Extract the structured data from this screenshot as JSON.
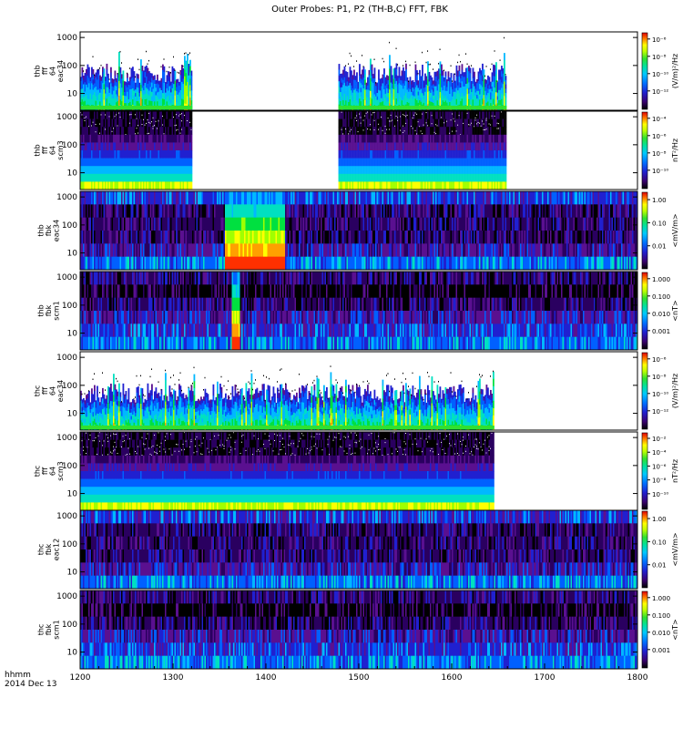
{
  "chart_data": {
    "type": "heatmap",
    "title": "Outer Probes: P1, P2 (TH-B,C) FFT, FBK",
    "corner_label": [
      "hhmm",
      "2014 Dec 13"
    ],
    "xlim": [
      1200,
      1800
    ],
    "x_ticks": [
      "1200",
      "1300",
      "1400",
      "1500",
      "1600",
      "1700",
      "1800"
    ],
    "panels": [
      {
        "id": "thb_fff_eac34",
        "ylabel": [
          "thb",
          "fff",
          "64",
          "eac34"
        ],
        "y_ticks": [
          "10",
          "100",
          "1000"
        ],
        "colorbar_label": "(V/m)²/Hz",
        "colorbar_ticks": [
          "10⁻⁶",
          "10⁻⁸",
          "10⁻¹⁰",
          "10⁻¹²"
        ],
        "coverage": [
          [
            1200,
            1320
          ],
          [
            1478,
            1658
          ]
        ],
        "background": "#ffffff",
        "style": "fff_e"
      },
      {
        "id": "thb_fff_scm3",
        "ylabel": [
          "thb",
          "fff",
          "64",
          "scm3"
        ],
        "y_ticks": [
          "10",
          "100",
          "1000"
        ],
        "colorbar_label": "nT²/Hz",
        "colorbar_ticks": [
          "10⁻⁴",
          "10⁻⁶",
          "10⁻⁸",
          "10⁻¹⁰"
        ],
        "coverage": [
          [
            1200,
            1320
          ],
          [
            1478,
            1658
          ]
        ],
        "background": "#ffffff",
        "style": "fff_b"
      },
      {
        "id": "thb_fbk_eac34",
        "ylabel": [
          "thb",
          "fbk",
          "eac34"
        ],
        "y_ticks": [
          "10",
          "100",
          "1000"
        ],
        "colorbar_label": "<mV/m>",
        "colorbar_ticks": [
          "1.00",
          "0.10",
          "0.01"
        ],
        "coverage": [
          [
            1200,
            1800
          ]
        ],
        "background": "#000000",
        "style": "fbk_e",
        "hot_window": [
          1355,
          1420
        ]
      },
      {
        "id": "thb_fbk_scm1",
        "ylabel": [
          "thb",
          "fbk",
          "scm1"
        ],
        "y_ticks": [
          "10",
          "100",
          "1000"
        ],
        "colorbar_label": "<nT>",
        "colorbar_ticks": [
          "1.000",
          "0.100",
          "0.010",
          "0.001"
        ],
        "coverage": [
          [
            1200,
            1800
          ]
        ],
        "background": "#000000",
        "style": "fbk_b",
        "hot_window": [
          1362,
          1372
        ]
      },
      {
        "id": "thc_fff_eac34",
        "ylabel": [
          "thc",
          "fff",
          "64",
          "eac34"
        ],
        "y_ticks": [
          "10",
          "100",
          "1000"
        ],
        "colorbar_label": "(V/m)²/Hz",
        "colorbar_ticks": [
          "10⁻⁶",
          "10⁻⁸",
          "10⁻¹⁰",
          "10⁻¹²"
        ],
        "coverage": [
          [
            1200,
            1645
          ]
        ],
        "background": "#ffffff",
        "style": "fff_e"
      },
      {
        "id": "thc_fff_scm3",
        "ylabel": [
          "thc",
          "fff",
          "64",
          "scm3"
        ],
        "y_ticks": [
          "10",
          "100",
          "1000"
        ],
        "colorbar_label": "nT²/Hz",
        "colorbar_ticks": [
          "10⁻²",
          "10⁻⁴",
          "10⁻⁶",
          "10⁻⁸",
          "10⁻¹⁰"
        ],
        "coverage": [
          [
            1200,
            1645
          ]
        ],
        "background": "#ffffff",
        "style": "fff_b"
      },
      {
        "id": "thc_fbk_eac12",
        "ylabel": [
          "thc",
          "fbk",
          "eac12"
        ],
        "y_ticks": [
          "10",
          "100",
          "1000"
        ],
        "colorbar_label": "<mV/m>",
        "colorbar_ticks": [
          "1.00",
          "0.10",
          "0.01"
        ],
        "coverage": [
          [
            1200,
            1800
          ]
        ],
        "background": "#000000",
        "style": "fbk_e"
      },
      {
        "id": "thc_fbk_scm1",
        "ylabel": [
          "thc",
          "fbk",
          "scm1"
        ],
        "y_ticks": [
          "10",
          "100",
          "1000"
        ],
        "colorbar_label": "<nT>",
        "colorbar_ticks": [
          "1.000",
          "0.100",
          "0.010",
          "0.001"
        ],
        "coverage": [
          [
            1200,
            1800
          ]
        ],
        "background": "#000000",
        "style": "fbk_b"
      }
    ]
  },
  "colors": {
    "colormap": [
      "#000000",
      "#2a0060",
      "#5a1090",
      "#2020d0",
      "#0060ff",
      "#00b8ff",
      "#00e0c0",
      "#00e040",
      "#a0ff00",
      "#ffff00",
      "#ffa000",
      "#ff3000",
      "#e00000"
    ]
  }
}
